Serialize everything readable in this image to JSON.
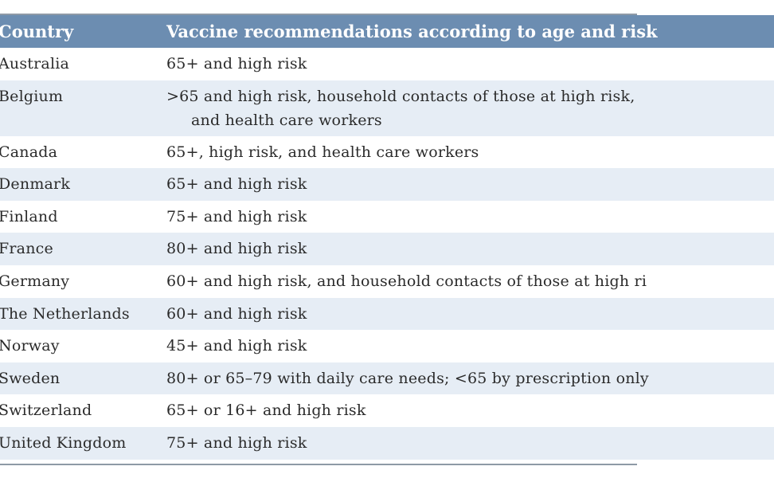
{
  "table": {
    "headers": [
      "Country",
      "Vaccine recommendations according to age and risk"
    ],
    "rows": [
      {
        "country": "Australia",
        "recommendation": "65+ and high risk"
      },
      {
        "country": "Belgium",
        "recommendation": ">65 and high risk, household contacts of those at high risk,",
        "recommendation_cont": "and health care workers"
      },
      {
        "country": "Canada",
        "recommendation": "65+, high risk, and health care workers"
      },
      {
        "country": "Denmark",
        "recommendation": "65+ and high risk"
      },
      {
        "country": "Finland",
        "recommendation": "75+ and high risk"
      },
      {
        "country": "France",
        "recommendation": "80+ and high risk"
      },
      {
        "country": "Germany",
        "recommendation": "60+ and high risk, and household contacts of those at high ri"
      },
      {
        "country": "The Netherlands",
        "recommendation": "60+ and high risk"
      },
      {
        "country": "Norway",
        "recommendation": "45+ and high risk"
      },
      {
        "country": "Sweden",
        "recommendation": "80+ or 65–79 with daily care needs; <65 by prescription only"
      },
      {
        "country": "Switzerland",
        "recommendation": "65+ or 16+ and high risk"
      },
      {
        "country": "United Kingdom",
        "recommendation": "75+ and high risk"
      }
    ]
  },
  "colors": {
    "header_bg": "#6c8db1",
    "shaded_row_bg": "#e6edf5",
    "rule": "#8e9aa6"
  }
}
